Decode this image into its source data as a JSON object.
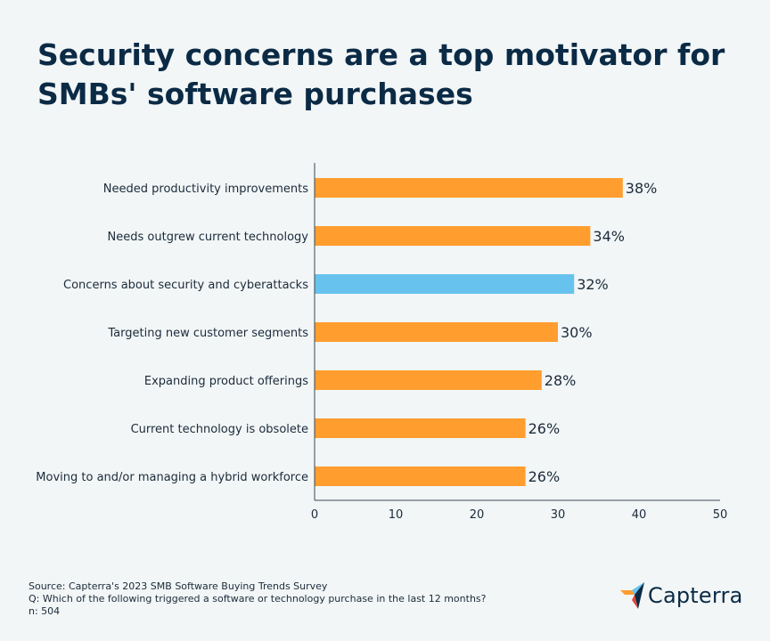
{
  "title": "Security concerns are a top motivator for SMBs' software purchases",
  "chart_data": {
    "type": "bar",
    "orientation": "horizontal",
    "categories": [
      "Needed productivity improvements",
      "Needs outgrew current technology",
      "Concerns about security and cyberattacks",
      "Targeting new customer segments",
      "Expanding product offerings",
      "Current technology is obsolete",
      "Moving to and/or managing a hybrid workforce"
    ],
    "values": [
      38,
      34,
      32,
      30,
      28,
      26,
      26
    ],
    "value_labels": [
      "38%",
      "34%",
      "32%",
      "30%",
      "28%",
      "26%",
      "26%"
    ],
    "highlight_index": 2,
    "xlim": [
      0,
      50
    ],
    "xticks": [
      0,
      10,
      20,
      30,
      40,
      50
    ],
    "xlabel": "",
    "ylabel": "",
    "grid": false,
    "colors": {
      "default": "#ff9d2e",
      "highlight": "#67c3ee",
      "axis": "#3d4650"
    }
  },
  "footer": {
    "source": "Source: Capterra's 2023 SMB Software Buying Trends Survey",
    "question": "Q: Which of the following triggered a software or technology purchase in the last 12 months?",
    "sample": "n: 504"
  },
  "logo": {
    "text": "Capterra",
    "colors": [
      "#ff9d2e",
      "#67c3ee",
      "#0b2a45",
      "#e4463b"
    ]
  }
}
